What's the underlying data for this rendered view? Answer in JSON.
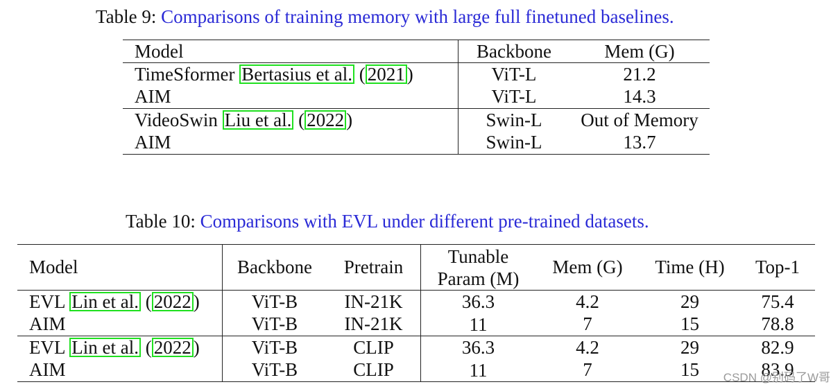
{
  "table9": {
    "caption_label": "Table 9:",
    "caption_text": "Comparisons of training memory with large full finetuned baselines.",
    "headers": [
      "Model",
      "Backbone",
      "Mem (G)"
    ],
    "rows": [
      {
        "model": "TimeSformer",
        "cite_author": "Bertasius et al.",
        "cite_year": "2021",
        "backbone": "ViT-L",
        "mem": "21.2"
      },
      {
        "model": "AIM",
        "backbone": "ViT-L",
        "mem": "14.3"
      },
      {
        "model": "VideoSwin",
        "cite_author": "Liu et al.",
        "cite_year": "2022",
        "backbone": "Swin-L",
        "mem": "Out of Memory"
      },
      {
        "model": "AIM",
        "backbone": "Swin-L",
        "mem": "13.7"
      }
    ]
  },
  "table10": {
    "caption_label": "Table 10:",
    "caption_text": "Comparisons with EVL under different pre-trained datasets.",
    "headers": [
      "Model",
      "Backbone",
      "Pretrain",
      "Tunable",
      "Param (M)",
      "Mem (G)",
      "Time (H)",
      "Top-1"
    ],
    "rows": [
      {
        "model": "EVL",
        "cite_author": "Lin et al.",
        "cite_year": "2022",
        "backbone": "ViT-B",
        "pretrain": "IN-21K",
        "param": "36.3",
        "mem": "4.2",
        "time": "29",
        "top1": "75.4"
      },
      {
        "model": "AIM",
        "backbone": "ViT-B",
        "pretrain": "IN-21K",
        "param": "11",
        "mem": "7",
        "time": "15",
        "top1": "78.8"
      },
      {
        "model": "EVL",
        "cite_author": "Lin et al.",
        "cite_year": "2022",
        "backbone": "ViT-B",
        "pretrain": "CLIP",
        "param": "36.3",
        "mem": "4.2",
        "time": "29",
        "top1": "82.9"
      },
      {
        "model": "AIM",
        "backbone": "ViT-B",
        "pretrain": "CLIP",
        "param": "11",
        "mem": "7",
        "time": "15",
        "top1": "83.9"
      }
    ]
  },
  "watermark": "CSDN @别码了W哥",
  "colors": {
    "caption_link": "#2a2ad6",
    "citation_box": "#1fe01f"
  }
}
